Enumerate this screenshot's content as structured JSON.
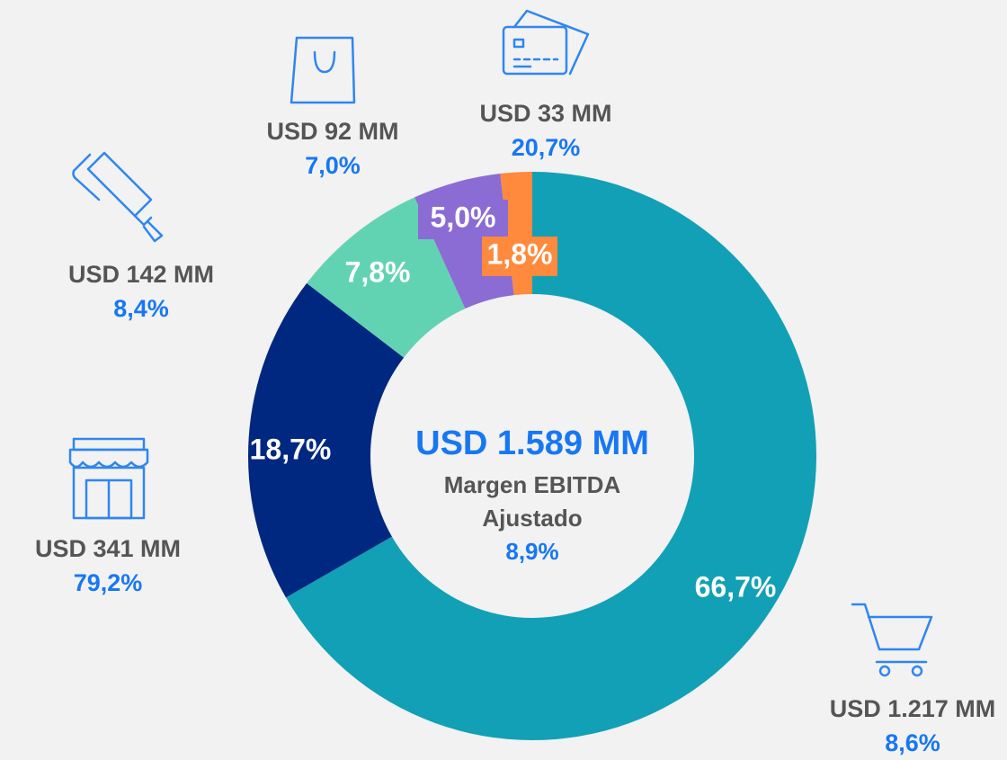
{
  "chart_data": {
    "type": "donut",
    "center_title": "USD 1.589 MM",
    "center_subtitle": [
      "Margen EBITDA",
      "Ajustado"
    ],
    "center_value": "8,9%",
    "series": [
      {
        "values": [
          66.7,
          18.7,
          7.8,
          5.0,
          1.8
        ],
        "value_labels": [
          "66,7%",
          "18,7%",
          "7,8%",
          "5,0%",
          "1,8%"
        ],
        "colors": [
          "#12a0b6",
          "#002880",
          "#62d3b2",
          "#8a6cd4",
          "#ff8a3d"
        ],
        "amounts": [
          "USD 1.217 MM",
          "USD 341 MM",
          "USD 142 MM",
          "USD 92 MM",
          "USD 33 MM"
        ],
        "margins": [
          "8,6%",
          "79,2%",
          "8,4%",
          "7,0%",
          "20,7%"
        ]
      }
    ]
  }
}
